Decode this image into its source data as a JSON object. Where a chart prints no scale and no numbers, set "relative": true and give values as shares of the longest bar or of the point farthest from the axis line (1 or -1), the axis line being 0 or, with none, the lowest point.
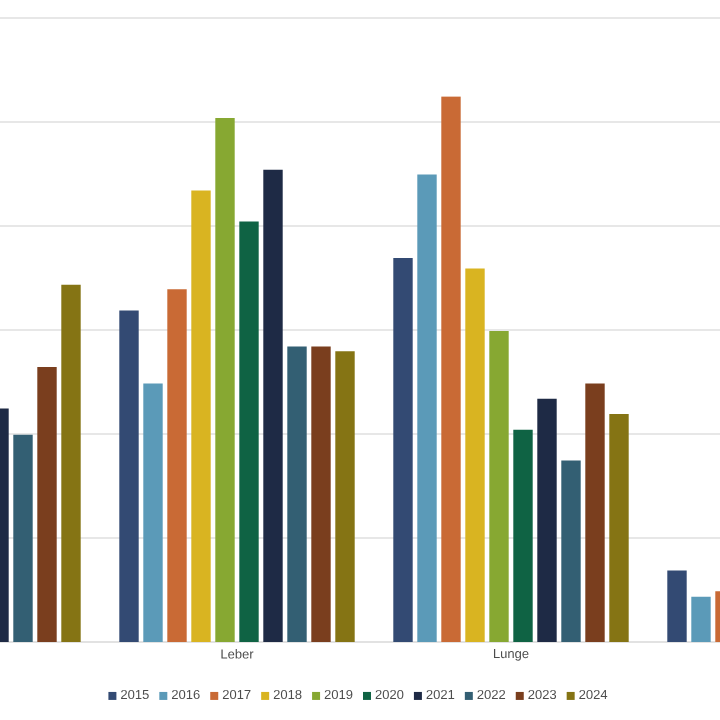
{
  "chart_data": {
    "type": "bar",
    "relative": true,
    "grid": "y",
    "legend": "bottom",
    "categories": [
      null,
      "Leber",
      "Lunge",
      null
    ],
    "series": [
      {
        "name": "2015",
        "color": "#334a73",
        "values": [
          null,
          0.608,
          0.704,
          0.131
        ]
      },
      {
        "name": "2016",
        "color": "#5b9ab8",
        "values": [
          null,
          0.474,
          0.857,
          0.083
        ]
      },
      {
        "name": "2017",
        "color": "#c96a35",
        "values": [
          null,
          0.647,
          1,
          0.093
        ]
      },
      {
        "name": "2018",
        "color": "#d9b421",
        "values": [
          null,
          0.828,
          0.685,
          null
        ]
      },
      {
        "name": "2019",
        "color": "#87a832",
        "values": [
          null,
          0.961,
          0.57,
          null
        ]
      },
      {
        "name": "2020",
        "color": "#0f6344",
        "values": [
          null,
          0.771,
          0.389,
          null
        ]
      },
      {
        "name": "2021",
        "color": "#1e2a45",
        "values": [
          0.428,
          0.866,
          0.446,
          null
        ]
      },
      {
        "name": "2022",
        "color": "#335f73",
        "values": [
          0.38,
          0.542,
          0.333,
          null
        ]
      },
      {
        "name": "2023",
        "color": "#7a3e1e",
        "values": [
          0.504,
          0.542,
          0.474,
          null
        ]
      },
      {
        "name": "2024",
        "color": "#857414",
        "values": [
          0.655,
          0.533,
          0.418,
          null
        ]
      }
    ]
  }
}
